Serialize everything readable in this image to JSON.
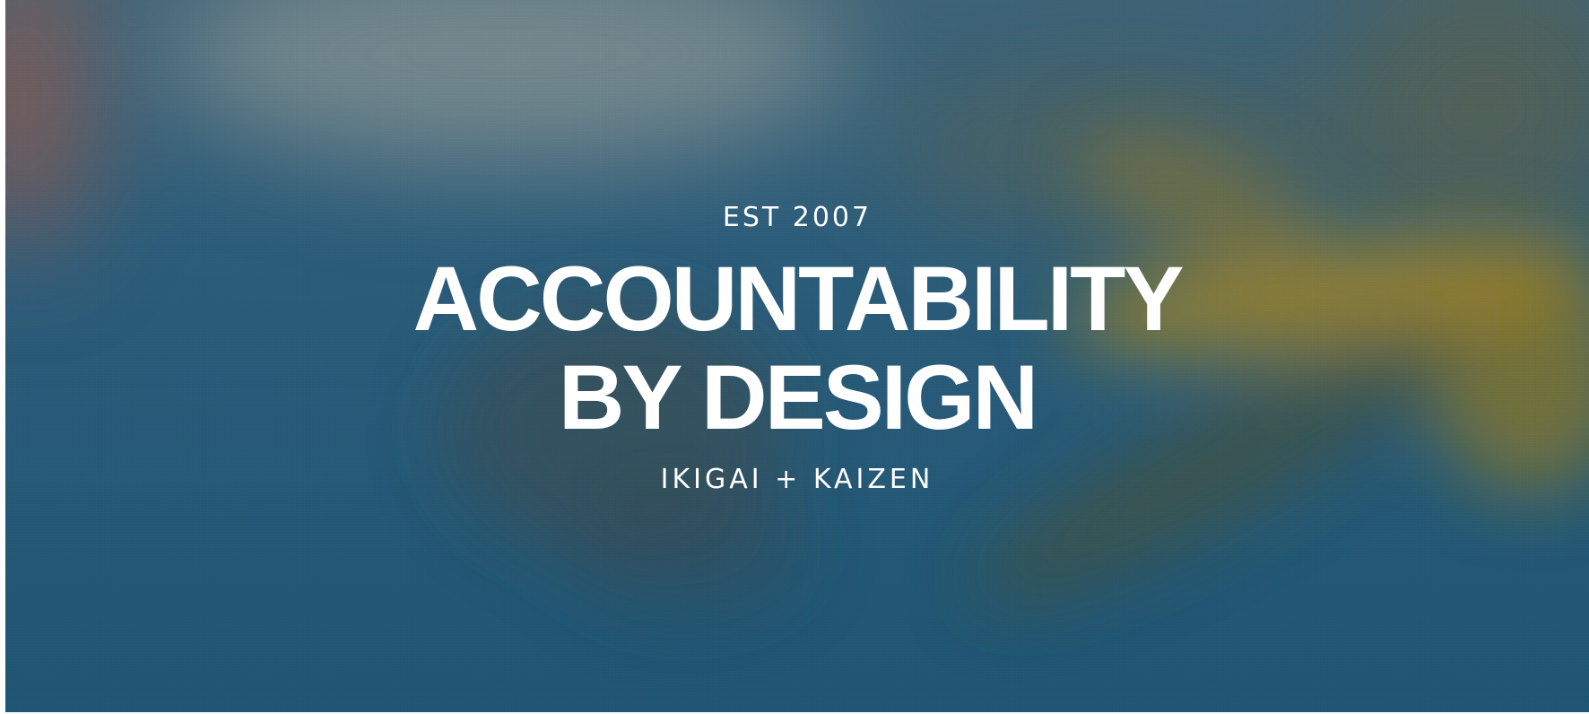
{
  "hero": {
    "eyebrow": "EST 2007",
    "headline_line1": "ACCOUNTABILITY",
    "headline_line2": "BY DESIGN",
    "subhead": "IKIGAI + KAIZEN",
    "colors": {
      "base": "#255a78",
      "text": "#ffffff",
      "leaf_yellow": "#b58c1e",
      "leaf_dark": "#3f4a35",
      "haze_grey": "#7a8a8e",
      "corner_red": "#8a5a4f"
    }
  }
}
